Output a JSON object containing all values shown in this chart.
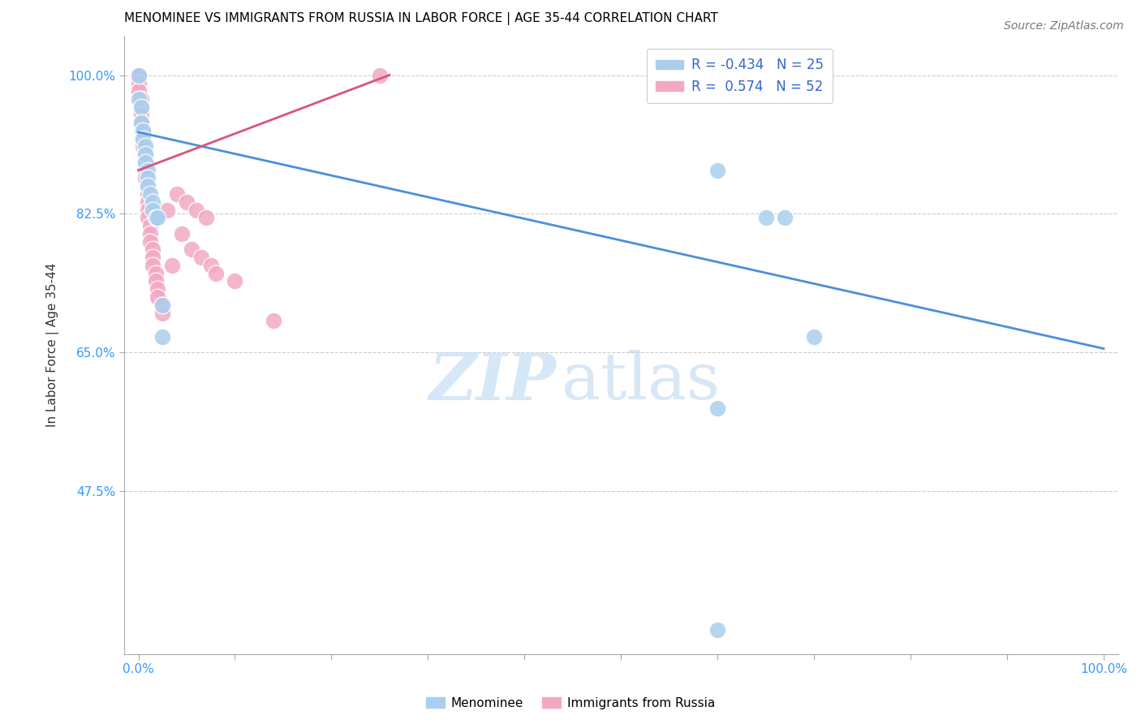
{
  "title": "MENOMINEE VS IMMIGRANTS FROM RUSSIA IN LABOR FORCE | AGE 35-44 CORRELATION CHART",
  "source": "Source: ZipAtlas.com",
  "ylabel": "In Labor Force | Age 35-44",
  "ytick_values": [
    1.0,
    0.825,
    0.65,
    0.475
  ],
  "ytick_labels": [
    "100.0%",
    "82.5%",
    "65.0%",
    "47.5%"
  ],
  "xlim": [
    -0.015,
    1.015
  ],
  "ylim": [
    0.27,
    1.05
  ],
  "legend_blue_r": "-0.434",
  "legend_blue_n": "25",
  "legend_pink_r": "0.574",
  "legend_pink_n": "52",
  "blue_color": "#aacfee",
  "pink_color": "#f2aac2",
  "blue_line_color": "#4a90d9",
  "pink_line_color": "#d9547a",
  "watermark_zip": "ZIP",
  "watermark_atlas": "atlas",
  "blue_x": [
    0.0,
    0.0,
    0.003,
    0.003,
    0.005,
    0.005,
    0.007,
    0.007,
    0.007,
    0.01,
    0.01,
    0.01,
    0.012,
    0.015,
    0.015,
    0.018,
    0.02,
    0.025,
    0.025,
    0.6,
    0.65,
    0.67,
    0.7,
    0.6,
    0.6
  ],
  "blue_y": [
    1.0,
    0.97,
    0.96,
    0.94,
    0.93,
    0.92,
    0.91,
    0.9,
    0.89,
    0.88,
    0.87,
    0.86,
    0.85,
    0.84,
    0.83,
    0.82,
    0.82,
    0.71,
    0.67,
    0.88,
    0.82,
    0.82,
    0.67,
    0.58,
    0.3
  ],
  "pink_x": [
    0.0,
    0.0,
    0.0,
    0.0,
    0.0,
    0.0,
    0.0,
    0.0,
    0.0,
    0.0,
    0.003,
    0.003,
    0.003,
    0.003,
    0.005,
    0.005,
    0.005,
    0.007,
    0.007,
    0.007,
    0.007,
    0.01,
    0.01,
    0.01,
    0.01,
    0.01,
    0.012,
    0.012,
    0.012,
    0.015,
    0.015,
    0.015,
    0.018,
    0.018,
    0.02,
    0.02,
    0.025,
    0.025,
    0.03,
    0.035,
    0.04,
    0.045,
    0.05,
    0.055,
    0.06,
    0.065,
    0.07,
    0.075,
    0.08,
    0.1,
    0.14,
    0.25
  ],
  "pink_y": [
    1.0,
    1.0,
    1.0,
    1.0,
    1.0,
    1.0,
    1.0,
    1.0,
    0.99,
    0.98,
    0.97,
    0.96,
    0.95,
    0.94,
    0.93,
    0.92,
    0.91,
    0.9,
    0.89,
    0.88,
    0.87,
    0.86,
    0.85,
    0.84,
    0.83,
    0.82,
    0.81,
    0.8,
    0.79,
    0.78,
    0.77,
    0.76,
    0.75,
    0.74,
    0.73,
    0.72,
    0.71,
    0.7,
    0.83,
    0.76,
    0.85,
    0.8,
    0.84,
    0.78,
    0.83,
    0.77,
    0.82,
    0.76,
    0.75,
    0.74,
    0.69,
    1.0
  ],
  "blue_line": [
    0.0,
    1.0,
    0.928,
    0.655
  ],
  "pink_line": [
    0.0,
    0.26,
    0.88,
    1.0
  ],
  "xtick_positions": [
    0.0,
    0.1,
    0.2,
    0.3,
    0.4,
    0.5,
    0.6,
    0.7,
    0.8,
    0.9,
    1.0
  ]
}
